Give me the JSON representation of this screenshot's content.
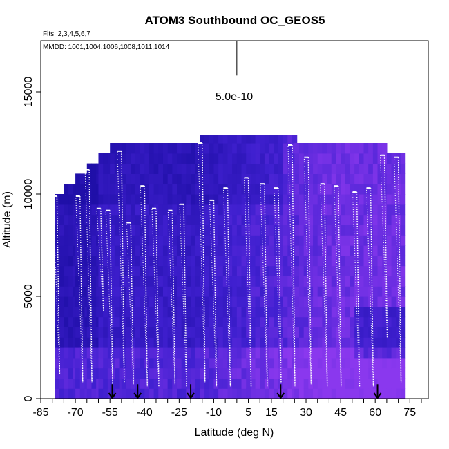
{
  "chart_data": {
    "type": "heatmap",
    "title": "ATOM3 Southbound OC_GEOS5",
    "flights_note": "Flts: 2,3,4,5,6,7",
    "dates_note": "MMDD: 1001,1004,1006,1008,1011,1014",
    "xlabel": "Latitude (deg N)",
    "ylabel": "Altitude (m)",
    "xlim": [
      -85,
      83
    ],
    "ylim": [
      0,
      17500
    ],
    "x_ticks": [
      -85,
      -70,
      -55,
      -40,
      -25,
      -10,
      5,
      15,
      30,
      45,
      60,
      75
    ],
    "x_ticks_minor": [
      -80,
      -75,
      -65,
      -60,
      -50,
      -45,
      -35,
      -30,
      -20,
      -15,
      -5,
      0,
      10,
      20,
      25,
      35,
      40,
      50,
      55,
      65,
      70,
      80
    ],
    "y_ticks": [
      0,
      5000,
      10000,
      15000
    ],
    "scale_label": "5.0e-10",
    "scale_bar": {
      "x": 0,
      "y_top": 17500,
      "y_bottom": 15800
    },
    "colors": {
      "low": "#1f0fa8",
      "mid": "#4020d0",
      "high": "#8a38ee",
      "path": "#ffffff",
      "arrow": "#000000"
    },
    "curtain_columns": [
      {
        "x0": -79,
        "x1": -75,
        "top": 10000
      },
      {
        "x0": -75,
        "x1": -70,
        "top": 10500
      },
      {
        "x0": -70,
        "x1": -65,
        "top": 11000
      },
      {
        "x0": -65,
        "x1": -60,
        "top": 11500
      },
      {
        "x0": -60,
        "x1": -55,
        "top": 12000
      },
      {
        "x0": -55,
        "x1": -50,
        "top": 12500
      },
      {
        "x0": -50,
        "x1": -16,
        "top": 12500
      },
      {
        "x0": -16,
        "x1": 25,
        "top": 12900
      },
      {
        "x0": 25,
        "x1": 65,
        "top": 12500
      },
      {
        "x0": 65,
        "x1": 72,
        "top": 12000
      }
    ],
    "flight_profiles": [
      {
        "lat": -78,
        "ceiling": 9900,
        "floor": 1200
      },
      {
        "lat": -68,
        "ceiling": 9900,
        "floor": 800
      },
      {
        "lat": -64,
        "ceiling": 11200,
        "floor": 800
      },
      {
        "lat": -59,
        "ceiling": 9300,
        "floor": 4300
      },
      {
        "lat": -55,
        "ceiling": 9200,
        "floor": 600
      },
      {
        "lat": -50,
        "ceiling": 12100,
        "floor": 800
      },
      {
        "lat": -46,
        "ceiling": 8600,
        "floor": 700
      },
      {
        "lat": -40,
        "ceiling": 10400,
        "floor": 600
      },
      {
        "lat": -35,
        "ceiling": 9300,
        "floor": 600
      },
      {
        "lat": -28,
        "ceiling": 9200,
        "floor": 700
      },
      {
        "lat": -23,
        "ceiling": 9500,
        "floor": 600
      },
      {
        "lat": -15,
        "ceiling": 12500,
        "floor": 800
      },
      {
        "lat": -10,
        "ceiling": 9700,
        "floor": 600
      },
      {
        "lat": -4,
        "ceiling": 10300,
        "floor": 600
      },
      {
        "lat": 5,
        "ceiling": 10800,
        "floor": 600
      },
      {
        "lat": 12,
        "ceiling": 10500,
        "floor": 600
      },
      {
        "lat": 18,
        "ceiling": 10300,
        "floor": 800
      },
      {
        "lat": 24,
        "ceiling": 12400,
        "floor": 600
      },
      {
        "lat": 31,
        "ceiling": 11800,
        "floor": 700
      },
      {
        "lat": 38,
        "ceiling": 10500,
        "floor": 600
      },
      {
        "lat": 44,
        "ceiling": 10400,
        "floor": 600
      },
      {
        "lat": 52,
        "ceiling": 10100,
        "floor": 600
      },
      {
        "lat": 58,
        "ceiling": 10300,
        "floor": 600
      },
      {
        "lat": 64,
        "ceiling": 11900,
        "floor": 3000
      },
      {
        "lat": 70,
        "ceiling": 11800,
        "floor": 800
      }
    ],
    "arrows": [
      -54,
      -43,
      -20,
      19,
      61
    ]
  }
}
